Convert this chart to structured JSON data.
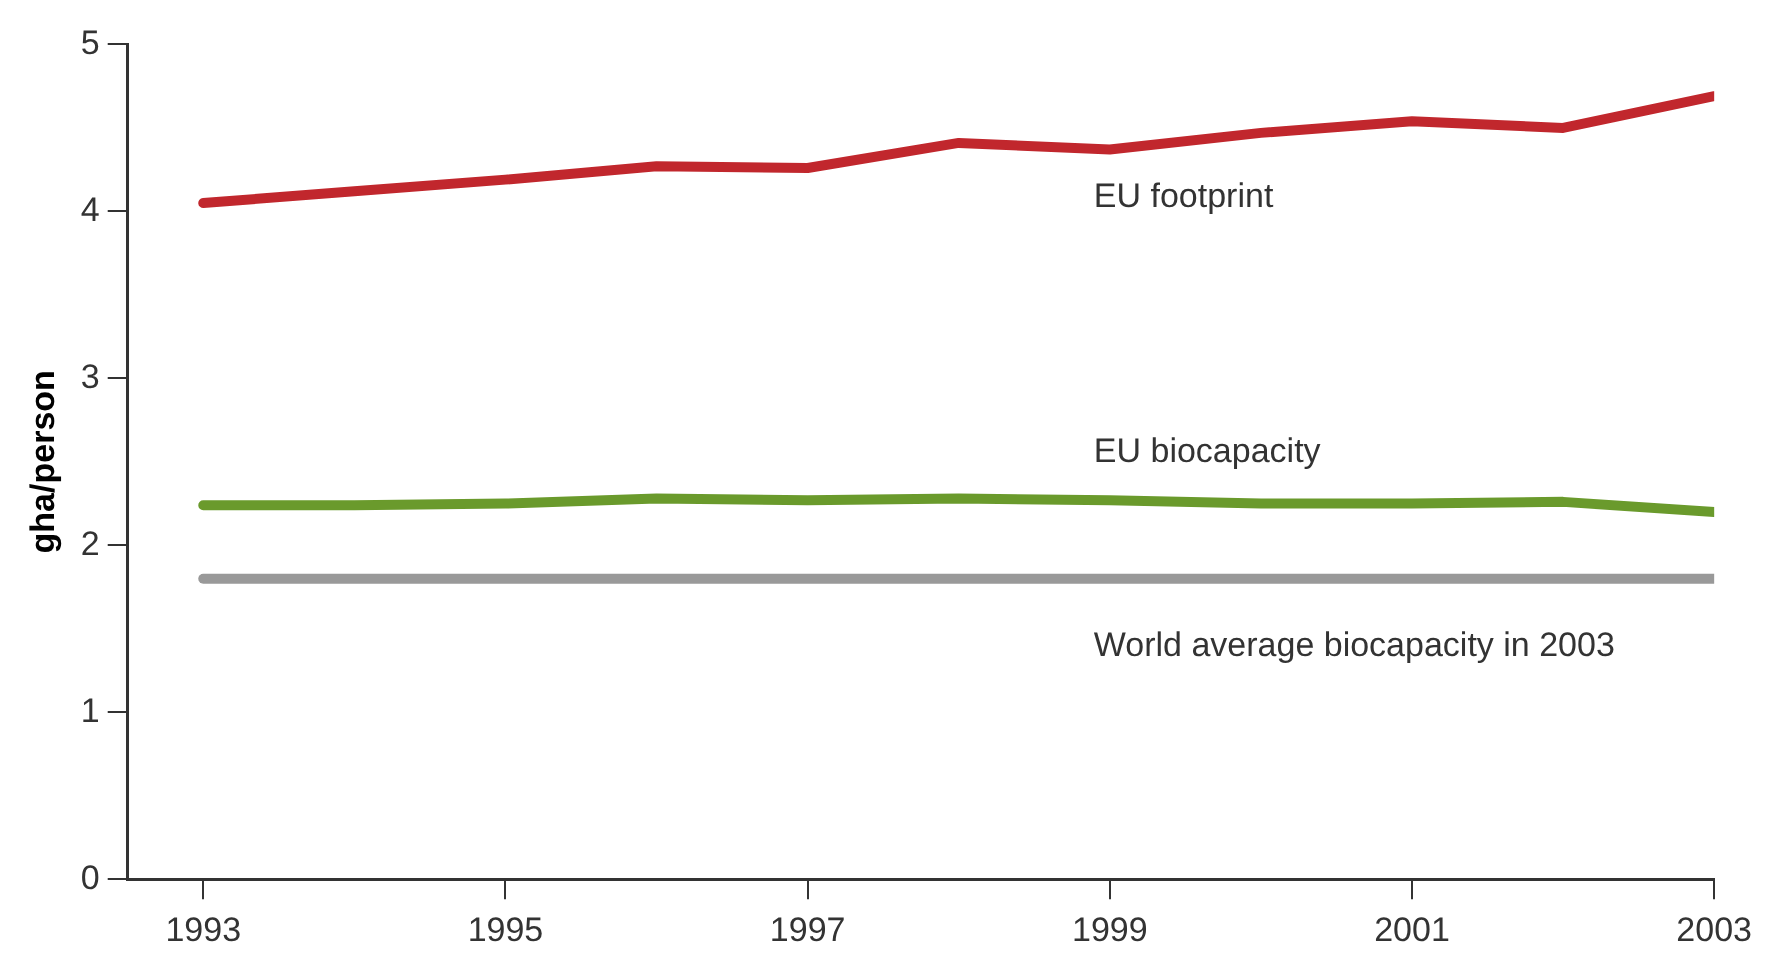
{
  "chart_data": {
    "type": "line",
    "ylabel": "gha/person",
    "x": [
      1993,
      1994,
      1995,
      1996,
      1997,
      1998,
      1999,
      2000,
      2001,
      2002,
      2003
    ],
    "series": [
      {
        "name": "EU footprint",
        "color": "#c1272d",
        "values": [
          4.05,
          4.12,
          4.19,
          4.27,
          4.26,
          4.41,
          4.37,
          4.47,
          4.54,
          4.5,
          4.69
        ]
      },
      {
        "name": "EU biocapacity",
        "color": "#6a9a2c",
        "values": [
          2.24,
          2.24,
          2.25,
          2.28,
          2.27,
          2.28,
          2.27,
          2.25,
          2.25,
          2.26,
          2.2
        ]
      },
      {
        "name": "World average biocapacity in 2003",
        "color": "#999999",
        "values": [
          1.8,
          1.8,
          1.8,
          1.8,
          1.8,
          1.8,
          1.8,
          1.8,
          1.8,
          1.8,
          1.8
        ]
      }
    ],
    "xlim": [
      1992.5,
      2003
    ],
    "xticks": [
      1993,
      1995,
      1997,
      1999,
      2001,
      2003
    ],
    "ylim": [
      0,
      5
    ],
    "yticks": [
      0,
      1,
      2,
      3,
      4,
      5
    ],
    "grid": false,
    "legend": false,
    "marker": "none",
    "line_style": "solid"
  }
}
